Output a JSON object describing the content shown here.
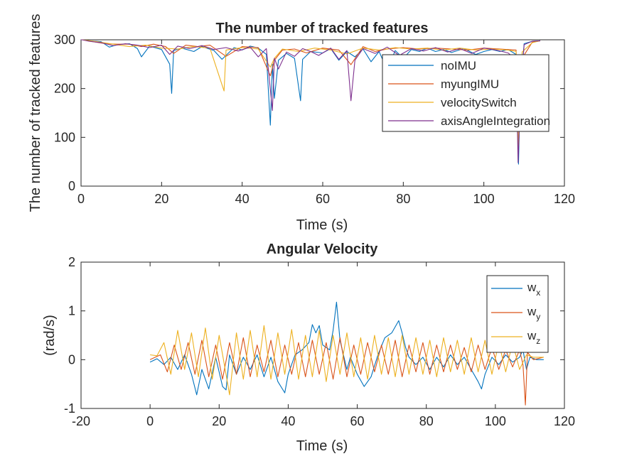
{
  "colors": {
    "blue": "#0072BD",
    "orange": "#D95319",
    "yellow": "#EDB120",
    "purple": "#7E2F8E",
    "axis": "#262626"
  },
  "chart_data": [
    {
      "type": "line",
      "title": "The number of tracked features",
      "xlabel": "Time (s)",
      "ylabel": "The number of tracked features",
      "xlim": [
        0,
        120
      ],
      "ylim": [
        0,
        300
      ],
      "xticks": [
        "0",
        "20",
        "40",
        "60",
        "80",
        "100",
        "120"
      ],
      "yticks": [
        "0",
        "100",
        "200",
        "300"
      ],
      "legend_position": "top-right",
      "grid": false,
      "series": [
        {
          "name": "noIMU",
          "color": "#0072BD",
          "x": [
            0,
            0.3,
            2,
            5,
            7,
            9,
            12,
            14,
            15,
            17,
            20,
            22,
            22.5,
            23,
            25,
            28,
            30,
            33,
            35,
            38,
            40,
            42,
            44,
            46,
            47,
            47.5,
            48,
            49,
            51,
            53,
            54.5,
            55,
            57,
            60,
            62,
            64,
            66,
            68,
            70,
            72,
            74,
            76,
            78,
            80,
            82,
            84,
            86,
            88,
            90,
            92,
            95,
            98,
            100,
            102,
            104,
            106,
            108,
            108.6,
            109,
            110,
            112,
            114
          ],
          "y": [
            300,
            300,
            298,
            296,
            285,
            290,
            292,
            282,
            265,
            287,
            280,
            250,
            190,
            278,
            283,
            276,
            286,
            278,
            260,
            284,
            279,
            287,
            283,
            270,
            125,
            250,
            180,
            258,
            272,
            262,
            175,
            260,
            276,
            273,
            282,
            258,
            276,
            265,
            281,
            255,
            276,
            238,
            278,
            262,
            280,
            276,
            283,
            276,
            280,
            274,
            282,
            270,
            276,
            280,
            276,
            280,
            270,
            45,
            185,
            292,
            297,
            298
          ]
        },
        {
          "name": "myungIMU",
          "color": "#D95319",
          "x": [
            0,
            0.3,
            3,
            6,
            9,
            12,
            15,
            18,
            21,
            23,
            26,
            29,
            32,
            36,
            40,
            44,
            47,
            48,
            50,
            53,
            56,
            60,
            64,
            67,
            70,
            73,
            76,
            80,
            84,
            88,
            92,
            96,
            100,
            104,
            108,
            108.7,
            109.5,
            112,
            114
          ],
          "y": [
            300,
            300,
            296,
            292,
            291,
            291,
            286,
            291,
            286,
            272,
            289,
            286,
            289,
            266,
            286,
            284,
            226,
            258,
            279,
            281,
            273,
            283,
            279,
            249,
            286,
            276,
            281,
            284,
            281,
            283,
            281,
            279,
            283,
            281,
            279,
            118,
            262,
            295,
            298
          ]
        },
        {
          "name": "velocitySwitch",
          "color": "#EDB120",
          "x": [
            0,
            0.3,
            4,
            8,
            12,
            16,
            20,
            24,
            28,
            32,
            35.5,
            36,
            40,
            44,
            47,
            48,
            50,
            54,
            58,
            62,
            66,
            70,
            74,
            78,
            82,
            86,
            90,
            94,
            98,
            102,
            106,
            108,
            108.6,
            109.5,
            112,
            114
          ],
          "y": [
            300,
            300,
            296,
            291,
            286,
            289,
            283,
            281,
            286,
            283,
            195,
            279,
            284,
            281,
            244,
            262,
            281,
            276,
            283,
            279,
            271,
            283,
            279,
            284,
            281,
            283,
            279,
            283,
            279,
            281,
            279,
            276,
            78,
            275,
            294,
            298
          ]
        },
        {
          "name": "axisAngleIntegration",
          "color": "#7E2F8E",
          "x": [
            0,
            0.3,
            2,
            5,
            8,
            11,
            14,
            17,
            20,
            22,
            24,
            27,
            30,
            33,
            36,
            39,
            42,
            44,
            46,
            47.5,
            48,
            49,
            51,
            53,
            55,
            57,
            59,
            62,
            64,
            66,
            67,
            68,
            70,
            73,
            76,
            79,
            82,
            85,
            88,
            91,
            94,
            97,
            100,
            103,
            106,
            108,
            108.5,
            109,
            110,
            112,
            114
          ],
          "y": [
            300,
            300,
            297,
            294,
            288,
            292,
            289,
            284,
            289,
            270,
            287,
            282,
            288,
            280,
            284,
            277,
            285,
            265,
            282,
            155,
            262,
            240,
            275,
            266,
            282,
            276,
            268,
            283,
            260,
            278,
            175,
            258,
            282,
            272,
            285,
            268,
            282,
            277,
            284,
            275,
            282,
            272,
            283,
            279,
            273,
            260,
            48,
            170,
            290,
            297,
            298
          ]
        }
      ]
    },
    {
      "type": "line",
      "title": "Angular Velocity",
      "xlabel": "Time (s)",
      "ylabel": "(rad/s)",
      "xlim": [
        -20,
        120
      ],
      "ylim": [
        -1,
        2
      ],
      "xticks": [
        "-20",
        "0",
        "20",
        "40",
        "60",
        "80",
        "100",
        "120"
      ],
      "yticks": [
        "-1",
        "0",
        "1",
        "2"
      ],
      "legend_position": "top-right",
      "grid": false,
      "series": [
        {
          "name": "w",
          "sub": "x",
          "color": "#0072BD",
          "x": [
            0,
            2,
            4,
            6,
            8,
            10,
            12,
            13.5,
            15,
            17,
            19,
            21,
            22,
            23,
            25,
            27,
            29,
            31,
            33,
            35,
            37,
            39,
            40,
            42,
            44,
            46,
            47,
            48,
            49,
            50,
            52,
            53,
            54,
            55,
            56,
            57,
            58,
            60,
            62,
            64,
            66,
            68,
            70,
            72,
            73,
            74,
            75,
            77,
            79,
            81,
            83,
            85,
            87,
            89,
            91,
            93,
            95,
            96,
            97,
            99,
            101,
            103,
            105,
            107,
            108,
            109,
            110,
            112,
            114
          ],
          "y": [
            -0.05,
            0.02,
            -0.1,
            0.05,
            -0.2,
            0.1,
            -0.3,
            -0.72,
            -0.2,
            -0.6,
            0.05,
            -0.55,
            -0.62,
            0.1,
            -0.3,
            0.05,
            -0.2,
            0.1,
            -0.35,
            0.05,
            -0.45,
            -0.68,
            -0.3,
            0.1,
            0.2,
            0.35,
            0.72,
            0.55,
            0.7,
            0.3,
            0.2,
            0.6,
            1.18,
            0.4,
            0.1,
            -0.2,
            0.05,
            -0.3,
            -0.55,
            -0.35,
            0.1,
            0.45,
            0.55,
            0.8,
            0.55,
            0.25,
            0.05,
            -0.1,
            0.05,
            -0.2,
            0.05,
            -0.15,
            0.1,
            -0.1,
            0.05,
            -0.2,
            -0.45,
            -0.6,
            -0.3,
            0.05,
            -0.1,
            0.1,
            -0.05,
            0.05,
            0.2,
            -0.2,
            0.05,
            0.0,
            0.0
          ]
        },
        {
          "name": "w",
          "sub": "y",
          "color": "#D95319",
          "x": [
            0,
            3,
            5,
            7,
            9,
            11,
            13,
            15,
            17,
            19,
            21,
            23,
            25,
            27,
            29,
            31,
            33,
            35,
            37,
            39,
            41,
            43,
            45,
            47,
            49,
            51,
            53,
            55,
            57,
            59,
            61,
            63,
            65,
            67,
            69,
            71,
            73,
            75,
            77,
            79,
            81,
            83,
            85,
            87,
            89,
            91,
            93,
            95,
            97,
            99,
            101,
            103,
            105,
            107,
            108,
            108.7,
            109.3,
            111,
            114
          ],
          "y": [
            0.0,
            0.1,
            -0.25,
            0.3,
            -0.2,
            0.35,
            -0.3,
            0.4,
            -0.35,
            0.3,
            -0.4,
            0.35,
            -0.3,
            0.45,
            -0.35,
            0.3,
            -0.25,
            0.4,
            -0.35,
            0.3,
            -0.3,
            0.35,
            -0.35,
            0.4,
            -0.3,
            0.35,
            -0.4,
            0.45,
            -0.35,
            0.3,
            -0.3,
            0.35,
            -0.25,
            0.3,
            -0.3,
            0.4,
            -0.35,
            0.3,
            -0.25,
            0.35,
            -0.3,
            0.3,
            -0.25,
            0.3,
            -0.2,
            0.25,
            -0.25,
            0.3,
            -0.2,
            0.25,
            -0.2,
            0.2,
            -0.15,
            0.2,
            -0.1,
            -0.93,
            0.15,
            0.0,
            0.05
          ]
        },
        {
          "name": "w",
          "sub": "z",
          "color": "#EDB120",
          "x": [
            0,
            2,
            4,
            6,
            8,
            10,
            12,
            14,
            16,
            18,
            20,
            22,
            23,
            25,
            27,
            29,
            31,
            33,
            35,
            37,
            39,
            41,
            43,
            45,
            47,
            49,
            51,
            53,
            55,
            57,
            59,
            61,
            63,
            65,
            67,
            69,
            71,
            73,
            75,
            77,
            79,
            81,
            83,
            85,
            87,
            89,
            91,
            93,
            95,
            97,
            99,
            101,
            103,
            105,
            107,
            109,
            111,
            114
          ],
          "y": [
            0.1,
            0.08,
            0.35,
            -0.3,
            0.6,
            -0.2,
            0.55,
            -0.35,
            0.65,
            -0.4,
            0.5,
            -0.3,
            -0.72,
            0.55,
            -0.4,
            0.6,
            -0.35,
            0.7,
            -0.4,
            0.55,
            -0.3,
            0.62,
            -0.4,
            0.5,
            -0.35,
            0.6,
            -0.45,
            0.5,
            -0.3,
            0.55,
            -0.35,
            0.45,
            -0.4,
            0.5,
            -0.3,
            0.45,
            -0.35,
            0.5,
            -0.3,
            0.45,
            -0.3,
            0.4,
            -0.35,
            0.45,
            -0.25,
            0.4,
            -0.3,
            0.45,
            -0.25,
            0.4,
            -0.3,
            0.35,
            -0.25,
            0.35,
            -0.2,
            0.1,
            0.05,
            0.05
          ]
        }
      ]
    }
  ]
}
